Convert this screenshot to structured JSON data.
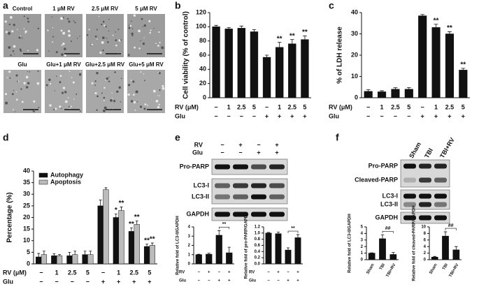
{
  "panel_labels": [
    "a",
    "b",
    "c",
    "d",
    "e",
    "f"
  ],
  "images": {
    "labels": [
      "Control",
      "1 μM RV",
      "2.5 μM RV",
      "5 μM RV",
      "Glu",
      "Glu+1 μM RV",
      "Glu+2.5 μM RV",
      "Glu+5 μM RV"
    ]
  },
  "blot_e": {
    "header_rows": [
      {
        "label": "RV",
        "values": [
          "−",
          "+",
          "−",
          "+"
        ]
      },
      {
        "label": "Glu",
        "values": [
          "−",
          "−",
          "+",
          "+"
        ]
      }
    ],
    "bands": [
      "Pro-PARP",
      "LC3-I",
      "LC3-II",
      "GAPDH"
    ]
  },
  "blot_f": {
    "columns": [
      "Sham",
      "TBI",
      "TBI+RV"
    ],
    "bands": [
      "Pro-PARP",
      "Cleaved-PARP",
      "LC3-I",
      "LC3-II",
      "GAPDH"
    ]
  },
  "chart_data": [
    {
      "type": "bar",
      "ylabel": "Cell viability (% of control)",
      "color": "#111111",
      "values": [
        100,
        97,
        98,
        93,
        57,
        71,
        76,
        82
      ],
      "errors": [
        2,
        2,
        3,
        3,
        3,
        7,
        6,
        5
      ],
      "significance": [
        null,
        null,
        null,
        null,
        null,
        "**",
        "**",
        "**"
      ],
      "ylim": [
        0,
        120
      ],
      "yticks": [
        0,
        20,
        40,
        60,
        80,
        100,
        120
      ],
      "conditions": [
        {
          "label": "RV (μM)",
          "values": [
            "−",
            "1",
            "2.5",
            "5",
            "−",
            "1",
            "2.5",
            "5"
          ]
        },
        {
          "label": "Glu",
          "values": [
            "−",
            "−",
            "−",
            "−",
            "+",
            "+",
            "+",
            "+"
          ]
        }
      ]
    },
    {
      "type": "bar",
      "ylabel": "% of LDH release",
      "color": "#111111",
      "values": [
        3,
        2.8,
        4,
        4,
        38.5,
        33,
        30,
        13
      ],
      "errors": [
        0.8,
        0.5,
        0.7,
        0.8,
        0.6,
        1.5,
        1,
        0.8
      ],
      "significance": [
        null,
        null,
        null,
        null,
        null,
        "**",
        "**",
        "**"
      ],
      "ylim": [
        0,
        40
      ],
      "yticks": [
        0,
        10,
        20,
        30,
        40
      ],
      "conditions": [
        {
          "label": "RV (μM)",
          "values": [
            "−",
            "1",
            "2.5",
            "5",
            "−",
            "1",
            "2.5",
            "5"
          ]
        },
        {
          "label": "Glu",
          "values": [
            "−",
            "−",
            "−",
            "−",
            "+",
            "+",
            "+",
            "+"
          ]
        }
      ]
    },
    {
      "type": "grouped-bar",
      "ylabel": "Percentage (%)",
      "legend": "upper left",
      "series": [
        {
          "name": "Autophagy",
          "color": "#111111",
          "values": [
            3,
            3.5,
            3.5,
            4,
            25,
            20,
            14,
            7.5
          ],
          "errors": [
            1.5,
            0.8,
            1.5,
            1.5,
            2.5,
            1.5,
            1.5,
            1
          ],
          "significance": [
            null,
            null,
            null,
            null,
            null,
            "*",
            "**",
            "**"
          ]
        },
        {
          "name": "Apoptosis",
          "color": "#bbbbbb",
          "values": [
            4,
            3.5,
            4,
            4,
            32,
            23,
            17,
            8
          ],
          "errors": [
            1.5,
            0.5,
            1.5,
            1.5,
            0.8,
            1.5,
            1.5,
            1
          ],
          "significance": [
            null,
            null,
            null,
            null,
            null,
            "**",
            "**",
            "**"
          ]
        }
      ],
      "ylim": [
        0,
        40
      ],
      "yticks": [
        0,
        5,
        10,
        15,
        20,
        25,
        30,
        35,
        40
      ],
      "conditions": [
        {
          "label": "RV (μM)",
          "values": [
            "−",
            "1",
            "2.5",
            "5",
            "−",
            "1",
            "2.5",
            "5"
          ]
        },
        {
          "label": "Glu",
          "values": [
            "−",
            "−",
            "−",
            "−",
            "+",
            "+",
            "+",
            "+"
          ]
        }
      ]
    },
    {
      "type": "bar",
      "ylabel": "Relative fold of LC3-II/GAPDH",
      "color": "#111111",
      "values": [
        1,
        1.05,
        3.1,
        1.2
      ],
      "errors": [
        0.05,
        0.1,
        0.5,
        0.6
      ],
      "bracket_label": "**",
      "ylim": [
        0,
        4
      ],
      "yticks": [
        0,
        1,
        2,
        3,
        4
      ],
      "conditions": [
        {
          "label": "RV",
          "values": [
            "−",
            "+",
            "−",
            "+"
          ]
        },
        {
          "label": "Glu",
          "values": [
            "−",
            "−",
            "+",
            "+"
          ]
        }
      ]
    },
    {
      "type": "bar",
      "ylabel": "Relative fold of pro-PARP/GAPDH",
      "color": "#111111",
      "values": [
        1.0,
        0.98,
        0.45,
        0.85
      ],
      "errors": [
        0.02,
        0.05,
        0.07,
        0.1
      ],
      "bracket_label": "**",
      "ylim": [
        0,
        1.2
      ],
      "yticks": [
        {
          "value": 0,
          "label": "0.0"
        },
        0.2,
        0.4,
        0.6,
        0.8,
        {
          "value": 1,
          "label": "1.0"
        },
        1.2
      ],
      "conditions": [
        {
          "label": "RV",
          "values": [
            "−",
            "+",
            "−",
            "+"
          ]
        },
        {
          "label": "Glu",
          "values": [
            "−",
            "−",
            "+",
            "+"
          ]
        }
      ]
    },
    {
      "type": "bar",
      "ylabel": "Relative fold of LC3-II/GAPDH",
      "color": "#111111",
      "categories": [
        "Sham",
        "TBI",
        "TBI+RV"
      ],
      "values": [
        1,
        3.2,
        0.8
      ],
      "errors": [
        0.05,
        0.6,
        0.3
      ],
      "bracket_label": "##",
      "ylim": [
        0,
        5
      ],
      "yticks": [
        0,
        1,
        2,
        3,
        4,
        5
      ]
    },
    {
      "type": "bar",
      "ylabel": "Relative fold of cleaved-PARP/GAPDH",
      "color": "#111111",
      "categories": [
        "Sham",
        "TBI",
        "TBI+RV"
      ],
      "values": [
        0.8,
        7.2,
        3
      ],
      "errors": [
        0.2,
        1.3,
        1.0
      ],
      "bracket_label": "##",
      "ylim": [
        0,
        10
      ],
      "yticks": [
        0,
        2,
        4,
        6,
        8,
        10
      ]
    }
  ]
}
